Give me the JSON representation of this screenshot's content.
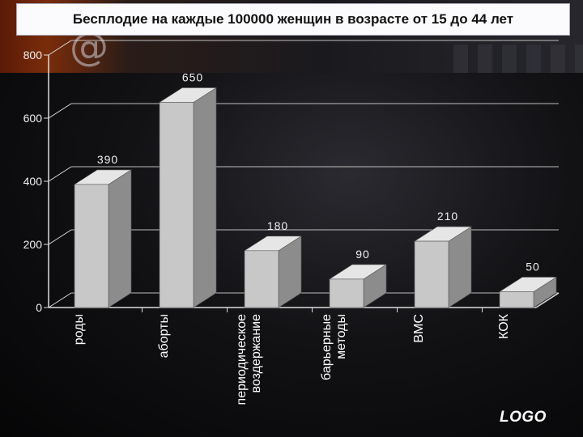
{
  "title": "Бесплодие на каждые 100000 женщин в возрасте от 15 до 44 лет",
  "logo_text": "LOGO",
  "icons": [
    "at-sign-icon"
  ],
  "colors": {
    "bar_front": "#c8c8c8",
    "bar_side": "#8c8c8c",
    "bar_top": "#e6e6e6",
    "axis": "#dcdcdc",
    "text": "#f0f0f0"
  },
  "chart_data": {
    "type": "bar",
    "title": "Бесплодие на каждые 100000 женщин в возрасте от 15 до 44 лет",
    "categories": [
      [
        "роды"
      ],
      [
        "аборты"
      ],
      [
        "периодическое",
        "воздержание"
      ],
      [
        "барьерные",
        "методы"
      ],
      [
        "ВМС"
      ],
      [
        "КОК"
      ]
    ],
    "values": [
      390,
      650,
      180,
      90,
      210,
      50
    ],
    "yticks": [
      0,
      200,
      400,
      600,
      800
    ],
    "ylim": [
      0,
      800
    ],
    "grid": true,
    "style": "3d"
  }
}
